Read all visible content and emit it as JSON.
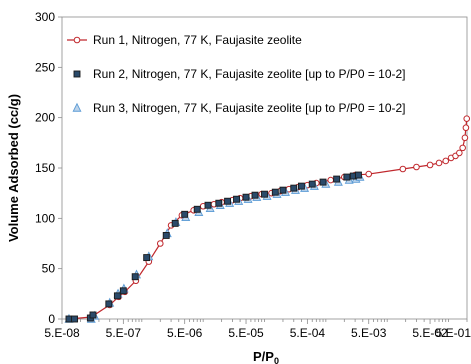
{
  "chart_data": {
    "type": "scatter",
    "xlabel": "P/P",
    "xlabel_sub": "0",
    "ylabel": "Volume Adsorbed (cc/g)",
    "x_scale": "log",
    "xlim": [
      5e-08,
      0.2
    ],
    "ylim": [
      0,
      300
    ],
    "x_ticks": [
      {
        "value": 5e-08,
        "label": "5.E-08"
      },
      {
        "value": 5e-07,
        "label": "5.E-07"
      },
      {
        "value": 5e-06,
        "label": "5.E-06"
      },
      {
        "value": 5e-05,
        "label": "5.E-05"
      },
      {
        "value": 0.0005,
        "label": "5.E-04"
      },
      {
        "value": 0.005,
        "label": "5.E-03"
      },
      {
        "value": 0.05,
        "label": "5.E-02"
      },
      {
        "value": 0.5,
        "label": "5.E-01"
      }
    ],
    "y_ticks": [
      0,
      50,
      100,
      150,
      200,
      250,
      300
    ],
    "grid": false,
    "legend_position": "top-left",
    "series": [
      {
        "name": "Run 1, Nitrogen, 77 K, Faujasite zeolite",
        "style": "line-circle",
        "color": "#c0282d",
        "points": [
          [
            6.5e-08,
            0
          ],
          [
            1.5e-07,
            2
          ],
          [
            3e-07,
            14
          ],
          [
            4.2e-07,
            22
          ],
          [
            5.3e-07,
            27
          ],
          [
            8e-07,
            38
          ],
          [
            1.3e-06,
            57
          ],
          [
            2e-06,
            75
          ],
          [
            3e-06,
            93
          ],
          [
            4.5e-06,
            103
          ],
          [
            7e-06,
            108
          ],
          [
            1e-05,
            112
          ],
          [
            1.5e-05,
            114
          ],
          [
            2e-05,
            116
          ],
          [
            3e-05,
            118
          ],
          [
            4e-05,
            120
          ],
          [
            6e-05,
            122
          ],
          [
            9e-05,
            124
          ],
          [
            0.00013,
            125
          ],
          [
            0.00018,
            127
          ],
          [
            0.00025,
            129
          ],
          [
            0.00035,
            131
          ],
          [
            0.0005,
            133
          ],
          [
            0.0007,
            135
          ],
          [
            0.0012,
            138
          ],
          [
            0.002,
            141
          ],
          [
            0.003,
            143
          ],
          [
            0.005,
            144
          ],
          [
            0.018,
            149
          ],
          [
            0.03,
            151
          ],
          [
            0.05,
            153
          ],
          [
            0.07,
            155
          ],
          [
            0.09,
            157
          ],
          [
            0.11,
            160
          ],
          [
            0.13,
            162
          ],
          [
            0.15,
            165
          ],
          [
            0.17,
            170
          ],
          [
            0.185,
            180
          ],
          [
            0.192,
            190
          ],
          [
            0.198,
            199
          ]
        ]
      },
      {
        "name": "Run 2, Nitrogen, 77 K, Faujasite zeolite [up to P/P0 = 10-2]",
        "style": "square",
        "color": "#1a1a1a",
        "fill": "#2a4a6a",
        "points": [
          [
            6.5e-08,
            0
          ],
          [
            8e-08,
            0
          ],
          [
            1.45e-07,
            1
          ],
          [
            1.6e-07,
            4
          ],
          [
            2.9e-07,
            15
          ],
          [
            4e-07,
            23
          ],
          [
            5e-07,
            28
          ],
          [
            7.8e-07,
            42
          ],
          [
            1.2e-06,
            61
          ],
          [
            2.5e-06,
            83
          ],
          [
            3.5e-06,
            95
          ],
          [
            5e-06,
            104
          ],
          [
            8e-06,
            109
          ],
          [
            1.2e-05,
            113
          ],
          [
            1.8e-05,
            115
          ],
          [
            2.5e-05,
            117
          ],
          [
            3.5e-05,
            119
          ],
          [
            5e-05,
            121
          ],
          [
            7e-05,
            123
          ],
          [
            0.0001,
            124
          ],
          [
            0.00015,
            126
          ],
          [
            0.0002,
            128
          ],
          [
            0.0003,
            130
          ],
          [
            0.0004,
            132
          ],
          [
            0.0006,
            134
          ],
          [
            0.0009,
            136
          ],
          [
            0.0015,
            139
          ],
          [
            0.0022,
            141
          ],
          [
            0.0028,
            142
          ],
          [
            0.0034,
            143
          ]
        ]
      },
      {
        "name": "Run 3, Nitrogen, 77 K, Faujasite zeolite [up to P/P0 = 10-2]",
        "style": "triangle",
        "color": "#5b9bd5",
        "fill": "#bcd3ea",
        "points": [
          [
            6.5e-08,
            0
          ],
          [
            1.5e-07,
            0
          ],
          [
            1.7e-07,
            3
          ],
          [
            3e-07,
            16
          ],
          [
            4.1e-07,
            25
          ],
          [
            5.1e-07,
            30
          ],
          [
            8.2e-07,
            44
          ],
          [
            1.3e-06,
            62
          ],
          [
            2.6e-06,
            85
          ],
          [
            3.6e-06,
            96
          ],
          [
            5.2e-06,
            101
          ],
          [
            8.5e-06,
            106
          ],
          [
            1.3e-05,
            110
          ],
          [
            1.9e-05,
            113
          ],
          [
            2.7e-05,
            115
          ],
          [
            3.8e-05,
            117
          ],
          [
            5.4e-05,
            119
          ],
          [
            7.5e-05,
            121
          ],
          [
            0.00011,
            122
          ],
          [
            0.00016,
            124
          ],
          [
            0.00022,
            126
          ],
          [
            0.00032,
            128
          ],
          [
            0.00045,
            130
          ],
          [
            0.00065,
            132
          ],
          [
            0.001,
            134
          ],
          [
            0.0016,
            136
          ],
          [
            0.0024,
            138
          ],
          [
            0.0031,
            139
          ],
          [
            0.0036,
            141
          ]
        ]
      }
    ]
  }
}
